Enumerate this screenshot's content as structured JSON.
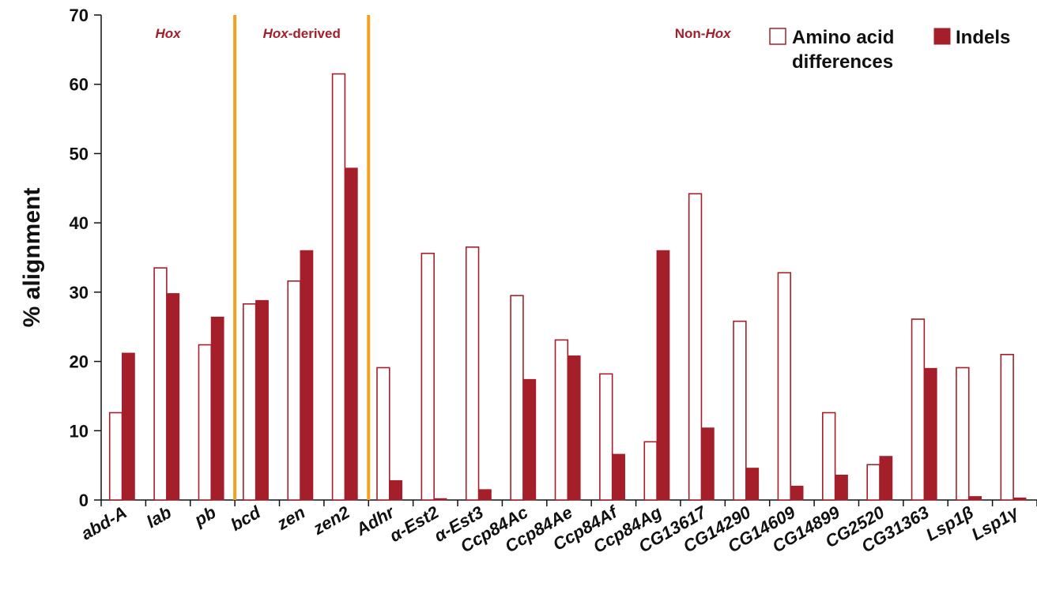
{
  "chart_data": {
    "type": "bar",
    "title": "",
    "xlabel": "",
    "ylabel": "% alignment",
    "ylim": [
      0,
      70
    ],
    "yticks": [
      0,
      10,
      20,
      30,
      40,
      50,
      60,
      70
    ],
    "grid": false,
    "legend_position": "top-right",
    "categories": [
      "abd-A",
      "lab",
      "pb",
      "bcd",
      "zen",
      "zen2",
      "Adhr",
      "α-Est2",
      "α-Est3",
      "Ccp84Ac",
      "Ccp84Ae",
      "Ccp84Af",
      "Ccp84Ag",
      "CG13617",
      "CG14290",
      "CG14609",
      "CG14899",
      "CG2520",
      "CG31363",
      "Lsp1β",
      "Lsp1γ"
    ],
    "series": [
      {
        "name": "Amino acid differences",
        "style": "outline",
        "color": "#a51f2b",
        "values": [
          12.6,
          33.5,
          22.4,
          28.3,
          31.6,
          61.5,
          19.1,
          35.6,
          36.5,
          29.5,
          23.1,
          18.2,
          8.4,
          44.2,
          25.8,
          32.8,
          12.6,
          5.1,
          26.1,
          19.1,
          21.0
        ]
      },
      {
        "name": "Indels",
        "style": "filled",
        "color": "#a51f2b",
        "values": [
          21.2,
          29.8,
          26.4,
          28.8,
          36.0,
          47.9,
          2.8,
          0.2,
          1.5,
          17.4,
          20.8,
          6.6,
          36.0,
          10.4,
          4.6,
          2.0,
          3.6,
          6.3,
          19.0,
          0.5,
          0.3
        ]
      }
    ],
    "groups": [
      {
        "label_parts": [
          {
            "text": "Hox",
            "italic": true
          }
        ],
        "start": 0,
        "end": 3
      },
      {
        "label_parts": [
          {
            "text": "Hox",
            "italic": true
          },
          {
            "text": "-derived",
            "italic": false
          }
        ],
        "start": 3,
        "end": 6
      },
      {
        "label_parts": [
          {
            "text": "Non-",
            "italic": false
          },
          {
            "text": "Hox",
            "italic": true
          }
        ],
        "start": 6,
        "end": 21
      }
    ],
    "dividers": [
      3,
      6
    ],
    "divider_color": "#f2a11e",
    "legend": {
      "outline_label_line1": "Amino acid",
      "outline_label_line2": "differences",
      "filled_label": "Indels"
    }
  }
}
